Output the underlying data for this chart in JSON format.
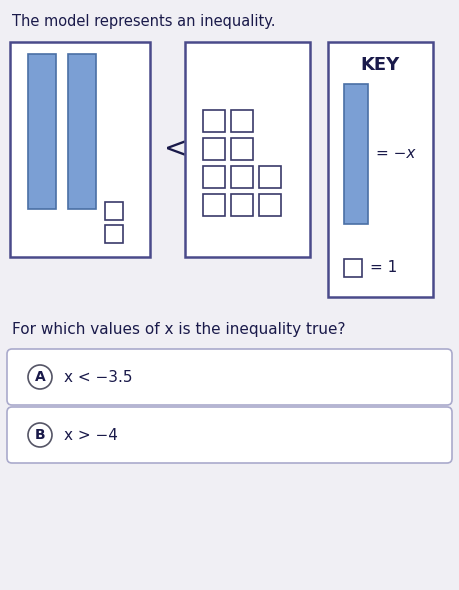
{
  "title": "The model represents an inequality.",
  "title_fontsize": 10.5,
  "bg_color": "#f0eff4",
  "box_bg": "#ffffff",
  "bar_color": "#7b9fd4",
  "bar_edge": "#4a6fa5",
  "sq_color": "#ffffff",
  "sq_edge": "#3a3a6a",
  "key_title": "KEY",
  "key_eq_x": "= −x",
  "key_eq_1": "= 1",
  "less_than": "<",
  "text_color": "#1a1a4a",
  "question": "For which values of x is the inequality true?",
  "question_fontsize": 11,
  "answer_A_label": "A",
  "answer_A_text": "x < −3.5",
  "answer_B_label": "B",
  "answer_B_text": "x > −4",
  "answer_fontsize": 11,
  "box_edge_color": "#4a4a8a"
}
